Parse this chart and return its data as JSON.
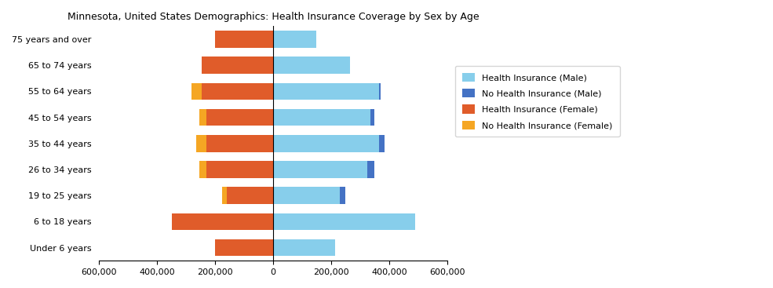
{
  "title": "Minnesota, United States Demographics: Health Insurance Coverage by Sex by Age",
  "age_groups": [
    "Under 6 years",
    "6 to 18 years",
    "19 to 25 years",
    "26 to 34 years",
    "35 to 44 years",
    "45 to 54 years",
    "55 to 64 years",
    "65 to 74 years",
    "75 years and over"
  ],
  "health_ins_male": [
    215000,
    490000,
    230000,
    325000,
    365000,
    335000,
    365000,
    265000,
    150000
  ],
  "no_health_ins_male": [
    0,
    0,
    20000,
    25000,
    20000,
    15000,
    5000,
    0,
    0
  ],
  "health_ins_female": [
    200000,
    350000,
    160000,
    230000,
    230000,
    230000,
    245000,
    245000,
    200000
  ],
  "no_health_ins_female": [
    0,
    0,
    15000,
    25000,
    35000,
    25000,
    35000,
    0,
    0
  ],
  "colors": {
    "health_ins_male": "#87CEEB",
    "no_health_ins_male": "#4472C4",
    "health_ins_female": "#E05C2A",
    "no_health_ins_female": "#F5A623"
  },
  "xlim": [
    -600000,
    600000
  ],
  "xtick_values": [
    -600000,
    -400000,
    -200000,
    0,
    200000,
    400000,
    600000
  ],
  "xtick_labels": [
    "600,000",
    "400,000",
    "200,000",
    "0",
    "200,000",
    "400,000",
    "600,000"
  ],
  "legend_labels": [
    "Health Insurance (Male)",
    "No Health Insurance (Male)",
    "Health Insurance (Female)",
    "No Health Insurance (Female)"
  ]
}
